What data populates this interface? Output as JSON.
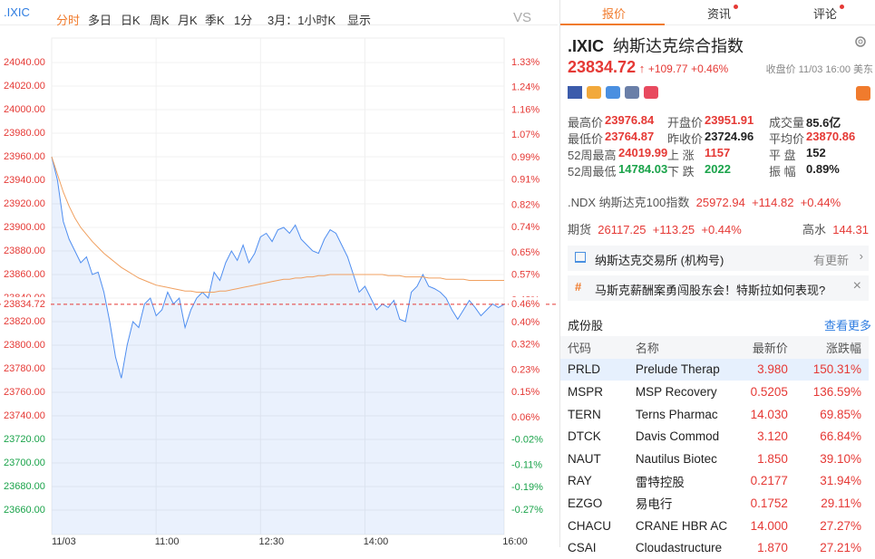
{
  "toolbar": {
    "symbol": ".IXIC",
    "items": [
      "分时",
      "多日",
      "日K",
      "周K",
      "月K",
      "季K",
      "1分",
      "3月：1小时K",
      "显示",
      "VS"
    ]
  },
  "chart_data": {
    "type": "line",
    "base": 23724.96,
    "xlim": [
      0,
      78
    ],
    "xticks": [
      {
        "value": 0,
        "label": "11/03"
      },
      {
        "value": 18,
        "label": "11:00"
      },
      {
        "value": 36,
        "label": "12:30"
      },
      {
        "value": 54,
        "label": "14:00"
      },
      {
        "value": 78,
        "label": "16:00"
      }
    ],
    "ylim": [
      23660,
      24040
    ],
    "yticks": [
      {
        "value": 24040,
        "label": "24040.00"
      },
      {
        "value": 24020,
        "label": "24020.00"
      },
      {
        "value": 24000,
        "label": "24000.00"
      },
      {
        "value": 23980,
        "label": "23980.00"
      },
      {
        "value": 23960,
        "label": "23960.00"
      },
      {
        "value": 23940,
        "label": "23940.00"
      },
      {
        "value": 23920,
        "label": "23920.00"
      },
      {
        "value": 23900,
        "label": "23900.00"
      },
      {
        "value": 23880,
        "label": "23880.00"
      },
      {
        "value": 23860,
        "label": "23860.00"
      },
      {
        "value": 23840,
        "label": "23840.00"
      },
      {
        "value": 23820,
        "label": "23820.00"
      },
      {
        "value": 23800,
        "label": "23800.00"
      },
      {
        "value": 23780,
        "label": "23780.00"
      },
      {
        "value": 23760,
        "label": "23760.00"
      },
      {
        "value": 23740,
        "label": "23740.00"
      },
      {
        "value": 23720,
        "label": "23720.00"
      },
      {
        "value": 23700,
        "label": "23700.00"
      },
      {
        "value": 23680,
        "label": "23680.00"
      },
      {
        "value": 23660,
        "label": "23660.00"
      }
    ],
    "y2lim": [
      -0.27,
      1.33
    ],
    "y2ticks": [
      {
        "value": 1.33,
        "label": "1.33%"
      },
      {
        "value": 1.24,
        "label": "1.24%"
      },
      {
        "value": 1.16,
        "label": "1.16%"
      },
      {
        "value": 1.07,
        "label": "1.07%"
      },
      {
        "value": 0.99,
        "label": "0.99%"
      },
      {
        "value": 0.91,
        "label": "0.91%"
      },
      {
        "value": 0.82,
        "label": "0.82%"
      },
      {
        "value": 0.74,
        "label": "0.74%"
      },
      {
        "value": 0.65,
        "label": "0.65%"
      },
      {
        "value": 0.57,
        "label": "0.57%"
      },
      {
        "value": 0.48,
        "label": "0.48%"
      },
      {
        "value": 0.4,
        "label": "0.40%"
      },
      {
        "value": 0.32,
        "label": "0.32%"
      },
      {
        "value": 0.23,
        "label": "0.23%"
      },
      {
        "value": 0.15,
        "label": "0.15%"
      },
      {
        "value": 0.06,
        "label": "0.06%"
      },
      {
        "value": -0.02,
        "label": "-0.02%"
      },
      {
        "value": -0.11,
        "label": "-0.11%"
      },
      {
        "value": -0.19,
        "label": "-0.19%"
      },
      {
        "value": -0.27,
        "label": "-0.27%"
      }
    ],
    "current": {
      "value": 23834.72,
      "label": "23834.72"
    },
    "current_pct": {
      "value": 0.46,
      "label": "0.46%"
    },
    "grid": true,
    "series": [
      {
        "name": "price",
        "color": "#4f8ef0",
        "values": [
          23960,
          23940,
          23905,
          23890,
          23880,
          23870,
          23875,
          23860,
          23862,
          23845,
          23820,
          23790,
          23772,
          23800,
          23820,
          23815,
          23835,
          23840,
          23825,
          23830,
          23845,
          23835,
          23840,
          23815,
          23830,
          23840,
          23845,
          23840,
          23862,
          23855,
          23870,
          23880,
          23872,
          23885,
          23870,
          23878,
          23892,
          23895,
          23888,
          23898,
          23900,
          23895,
          23902,
          23890,
          23885,
          23880,
          23878,
          23890,
          23898,
          23895,
          23885,
          23875,
          23860,
          23845,
          23850,
          23840,
          23830,
          23835,
          23832,
          23838,
          23822,
          23820,
          23845,
          23850,
          23860,
          23850,
          23848,
          23845,
          23840,
          23830,
          23822,
          23830,
          23838,
          23832,
          23825,
          23830,
          23835,
          23832,
          23834.72
        ]
      },
      {
        "name": "average",
        "color": "#f0a060",
        "values": [
          23960,
          23945,
          23930,
          23918,
          23908,
          23900,
          23894,
          23888,
          23883,
          23878,
          23874,
          23870,
          23866,
          23863,
          23860,
          23857,
          23855,
          23853,
          23851,
          23850,
          23849,
          23848,
          23847,
          23846,
          23846,
          23845,
          23845,
          23845,
          23845,
          23846,
          23846,
          23847,
          23848,
          23849,
          23850,
          23851,
          23852,
          23853,
          23854,
          23855,
          23856,
          23856,
          23857,
          23857,
          23858,
          23858,
          23859,
          23859,
          23860,
          23860,
          23860,
          23860,
          23860,
          23860,
          23860,
          23860,
          23860,
          23860,
          23859,
          23859,
          23859,
          23858,
          23858,
          23858,
          23858,
          23857,
          23857,
          23857,
          23856,
          23856,
          23856,
          23856,
          23855,
          23855,
          23855,
          23855,
          23855,
          23855,
          23855
        ]
      }
    ]
  },
  "tabs": [
    "报价",
    "资讯",
    "评论"
  ],
  "quote": {
    "symbol": ".IXIC",
    "name": "纳斯达克综合指数",
    "price": "23834.72",
    "change": "+109.77",
    "change_pct": "+0.46%",
    "close_time": "收盘价 11/03 16:00 美东",
    "stats": [
      [
        [
          "最高价",
          "23976.84"
        ],
        [
          "开盘价",
          "23951.91"
        ],
        [
          "成交量",
          "85.6亿"
        ]
      ],
      [
        [
          "最低价",
          "23764.87"
        ],
        [
          "昨收价",
          "23724.96"
        ],
        [
          "平均价",
          "23870.86"
        ]
      ],
      [
        [
          "52周最高",
          "24019.99"
        ],
        [
          "上 涨",
          "1157"
        ],
        [
          "平 盘",
          "152"
        ]
      ],
      [
        [
          "52周最低",
          "14784.03"
        ],
        [
          "下 跌",
          "2022"
        ],
        [
          "振 幅",
          "0.89%"
        ]
      ]
    ]
  },
  "related": {
    "ndx": [
      ".NDX 纳斯达克100指数",
      "25972.94",
      "+114.82",
      "+0.44%"
    ],
    "futures": [
      "期货",
      "26117.25",
      "+113.25",
      "+0.44%",
      "高水",
      "144.31"
    ]
  },
  "notices": [
    [
      "纳斯达克交易所 (机构号)",
      "有更新"
    ],
    [
      "马斯克薪酬案勇闯股东会！特斯拉如何表现?"
    ]
  ],
  "constituents": {
    "title": "成份股",
    "more": "查看更多",
    "header": [
      "代码",
      "名称",
      "最新价",
      "涨跌幅"
    ],
    "rows": [
      [
        "PRLD",
        "Prelude Therap",
        "3.980",
        "150.31%"
      ],
      [
        "MSPR",
        "MSP Recovery",
        "0.5205",
        "136.59%"
      ],
      [
        "TERN",
        "Terns Pharmac",
        "14.030",
        "69.85%"
      ],
      [
        "DTCK",
        "Davis Commod",
        "3.120",
        "66.84%"
      ],
      [
        "NAUT",
        "Nautilus Biotec",
        "1.850",
        "39.10%"
      ],
      [
        "RAY",
        "雷特控股",
        "0.2177",
        "31.94%"
      ],
      [
        "EZGO",
        "易电行",
        "0.1752",
        "29.11%"
      ],
      [
        "CHACU",
        "CRANE HBR AC",
        "14.000",
        "27.27%"
      ],
      [
        "CSAI",
        "Cloudastructure",
        "1.870",
        "27.21%"
      ]
    ]
  }
}
